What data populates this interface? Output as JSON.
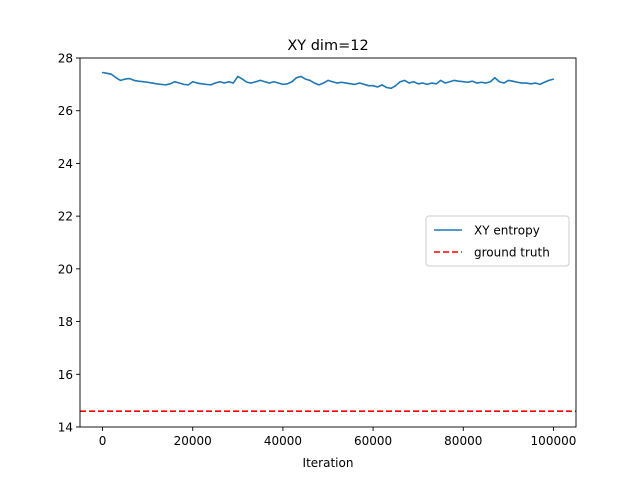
{
  "chart_data": {
    "type": "line",
    "title": "XY dim=12",
    "xlabel": "Iteration",
    "ylabel": "",
    "xlim": [
      -5000,
      105000
    ],
    "ylim": [
      14,
      28
    ],
    "xticks": [
      0,
      20000,
      40000,
      60000,
      80000,
      100000
    ],
    "yticks": [
      14,
      16,
      18,
      20,
      22,
      24,
      26,
      28
    ],
    "grid": false,
    "legend_position": "center-right",
    "series": [
      {
        "name": "XY entropy",
        "style": "solid",
        "color": "#1f77b4",
        "points": [
          [
            0,
            27.45
          ],
          [
            1000,
            27.42
          ],
          [
            2000,
            27.38
          ],
          [
            3000,
            27.25
          ],
          [
            4000,
            27.15
          ],
          [
            5000,
            27.2
          ],
          [
            6000,
            27.22
          ],
          [
            7000,
            27.15
          ],
          [
            8000,
            27.12
          ],
          [
            9000,
            27.1
          ],
          [
            10000,
            27.08
          ],
          [
            11000,
            27.05
          ],
          [
            12000,
            27.02
          ],
          [
            13000,
            27.0
          ],
          [
            14000,
            26.98
          ],
          [
            15000,
            27.02
          ],
          [
            16000,
            27.1
          ],
          [
            17000,
            27.05
          ],
          [
            18000,
            27.0
          ],
          [
            19000,
            26.98
          ],
          [
            20000,
            27.1
          ],
          [
            21000,
            27.05
          ],
          [
            22000,
            27.02
          ],
          [
            23000,
            27.0
          ],
          [
            24000,
            26.98
          ],
          [
            25000,
            27.05
          ],
          [
            26000,
            27.1
          ],
          [
            27000,
            27.05
          ],
          [
            28000,
            27.1
          ],
          [
            29000,
            27.05
          ],
          [
            30000,
            27.3
          ],
          [
            31000,
            27.2
          ],
          [
            32000,
            27.08
          ],
          [
            33000,
            27.05
          ],
          [
            34000,
            27.1
          ],
          [
            35000,
            27.15
          ],
          [
            36000,
            27.1
          ],
          [
            37000,
            27.05
          ],
          [
            38000,
            27.1
          ],
          [
            39000,
            27.05
          ],
          [
            40000,
            27.0
          ],
          [
            41000,
            27.02
          ],
          [
            42000,
            27.1
          ],
          [
            43000,
            27.25
          ],
          [
            44000,
            27.3
          ],
          [
            45000,
            27.2
          ],
          [
            46000,
            27.15
          ],
          [
            47000,
            27.05
          ],
          [
            48000,
            26.98
          ],
          [
            49000,
            27.05
          ],
          [
            50000,
            27.15
          ],
          [
            51000,
            27.1
          ],
          [
            52000,
            27.05
          ],
          [
            53000,
            27.08
          ],
          [
            54000,
            27.05
          ],
          [
            55000,
            27.02
          ],
          [
            56000,
            27.0
          ],
          [
            57000,
            27.05
          ],
          [
            58000,
            27.0
          ],
          [
            59000,
            26.95
          ],
          [
            60000,
            26.95
          ],
          [
            61000,
            26.9
          ],
          [
            62000,
            26.98
          ],
          [
            63000,
            26.88
          ],
          [
            64000,
            26.85
          ],
          [
            65000,
            26.95
          ],
          [
            66000,
            27.1
          ],
          [
            67000,
            27.15
          ],
          [
            68000,
            27.05
          ],
          [
            69000,
            27.1
          ],
          [
            70000,
            27.02
          ],
          [
            71000,
            27.05
          ],
          [
            72000,
            27.0
          ],
          [
            73000,
            27.05
          ],
          [
            74000,
            27.02
          ],
          [
            75000,
            27.15
          ],
          [
            76000,
            27.05
          ],
          [
            77000,
            27.1
          ],
          [
            78000,
            27.15
          ],
          [
            79000,
            27.12
          ],
          [
            80000,
            27.1
          ],
          [
            81000,
            27.08
          ],
          [
            82000,
            27.12
          ],
          [
            83000,
            27.05
          ],
          [
            84000,
            27.08
          ],
          [
            85000,
            27.05
          ],
          [
            86000,
            27.1
          ],
          [
            87000,
            27.25
          ],
          [
            88000,
            27.1
          ],
          [
            89000,
            27.05
          ],
          [
            90000,
            27.15
          ],
          [
            91000,
            27.12
          ],
          [
            92000,
            27.08
          ],
          [
            93000,
            27.05
          ],
          [
            94000,
            27.05
          ],
          [
            95000,
            27.02
          ],
          [
            96000,
            27.05
          ],
          [
            97000,
            27.0
          ],
          [
            98000,
            27.08
          ],
          [
            99000,
            27.15
          ],
          [
            100000,
            27.2
          ]
        ]
      },
      {
        "name": "ground truth",
        "style": "dashed",
        "color": "#ff0000",
        "y": 14.6
      }
    ]
  }
}
